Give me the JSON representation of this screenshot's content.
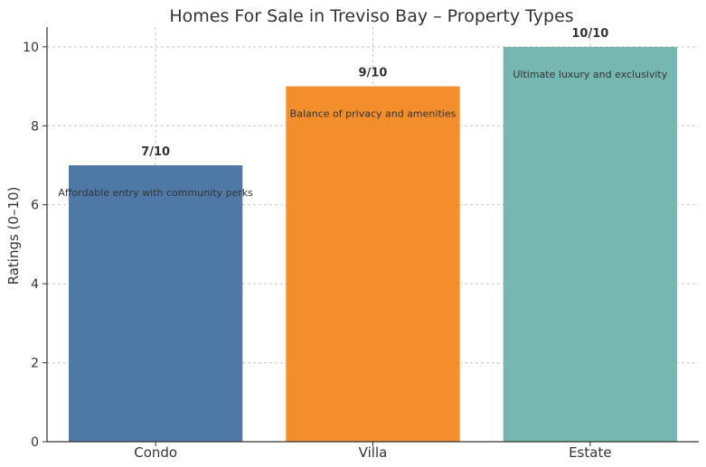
{
  "chart_data": {
    "type": "bar",
    "title": "Homes For Sale in Treviso Bay – Property Types",
    "xlabel": "",
    "ylabel": "Ratings (0–10)",
    "ylim": [
      0,
      10.5
    ],
    "yticks": [
      0,
      2,
      4,
      6,
      8,
      10
    ],
    "grid": true,
    "categories": [
      "Condo",
      "Villa",
      "Estate"
    ],
    "values": [
      7,
      9,
      10
    ],
    "value_labels": [
      "7/10",
      "9/10",
      "10/10"
    ],
    "annotations": [
      "Affordable entry with community perks",
      "Balance of privacy and amenities",
      "Ultimate luxury and exclusivity"
    ],
    "colors": [
      "#4e79a7",
      "#f28e2b",
      "#76b7b2"
    ]
  }
}
